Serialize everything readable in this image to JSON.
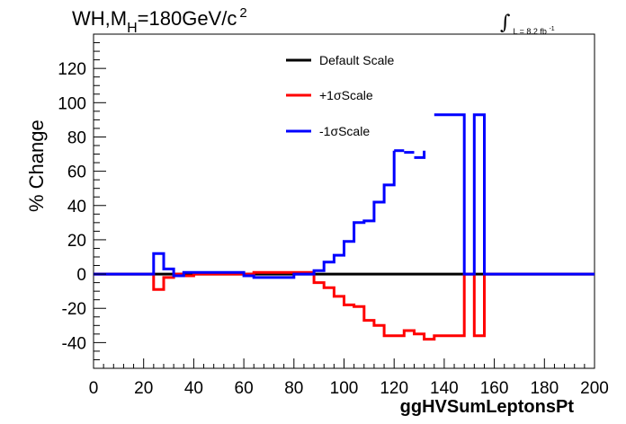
{
  "chart_data": {
    "type": "line",
    "title_parts": {
      "main": "WH,M",
      "sub": "H",
      "rest": "=180GeV/c",
      "sup": "2"
    },
    "lumi_label": "L = 8.2 fb",
    "lumi_sup": "-1",
    "xlabel": "ggHVSumLeptonsPt",
    "ylabel": "% Change",
    "xlim": [
      0,
      200
    ],
    "ylim": [
      -55,
      140
    ],
    "x_ticks": [
      0,
      20,
      40,
      60,
      80,
      100,
      120,
      140,
      160,
      180,
      200
    ],
    "x_tick_labels": [
      "0",
      "20",
      "40",
      "60",
      "80",
      "100",
      "120",
      "140",
      "160",
      "180",
      "200"
    ],
    "y_ticks": [
      -40,
      -20,
      0,
      20,
      40,
      60,
      80,
      100,
      120
    ],
    "y_tick_labels": [
      "-40",
      "-20",
      "0",
      "20",
      "40",
      "60",
      "80",
      "100",
      "120"
    ],
    "grid": false,
    "legend_position": "top-center",
    "series": [
      {
        "name": "Default Scale",
        "color": "#000000",
        "style": "step",
        "points": [
          [
            0,
            0
          ],
          [
            200,
            0
          ]
        ]
      },
      {
        "name": "+1σScale",
        "color": "#ff0000",
        "style": "step",
        "points": [
          [
            0,
            0
          ],
          [
            24,
            0
          ],
          [
            24,
            -9
          ],
          [
            28,
            -9
          ],
          [
            28,
            -2
          ],
          [
            32,
            -2
          ],
          [
            32,
            0
          ],
          [
            36,
            0
          ],
          [
            36,
            -1
          ],
          [
            40,
            -1
          ],
          [
            40,
            0
          ],
          [
            64,
            0
          ],
          [
            64,
            1
          ],
          [
            88,
            1
          ],
          [
            88,
            -5
          ],
          [
            92,
            -5
          ],
          [
            92,
            -8
          ],
          [
            96,
            -8
          ],
          [
            96,
            -13
          ],
          [
            100,
            -13
          ],
          [
            100,
            -18
          ],
          [
            104,
            -18
          ],
          [
            104,
            -19
          ],
          [
            108,
            -19
          ],
          [
            108,
            -27
          ],
          [
            112,
            -27
          ],
          [
            112,
            -30
          ],
          [
            116,
            -30
          ],
          [
            116,
            -36
          ],
          [
            120,
            -36
          ],
          [
            120,
            -36
          ],
          [
            124,
            -36
          ],
          [
            124,
            -33
          ],
          [
            128,
            -33
          ],
          [
            128,
            -35
          ],
          [
            132,
            -35
          ],
          [
            132,
            -38
          ],
          [
            136,
            -38
          ],
          [
            136,
            -36
          ],
          [
            140,
            -36
          ],
          [
            140,
            -36
          ],
          [
            148,
            -36
          ],
          [
            148,
            0
          ],
          [
            152,
            0
          ],
          [
            152,
            -36
          ],
          [
            156,
            -36
          ],
          [
            156,
            0
          ],
          [
            200,
            0
          ]
        ]
      },
      {
        "name": "-1σScale",
        "color": "#0000ff",
        "style": "step",
        "points": [
          [
            0,
            0
          ],
          [
            24,
            0
          ],
          [
            24,
            12
          ],
          [
            28,
            12
          ],
          [
            28,
            3
          ],
          [
            32,
            3
          ],
          [
            32,
            -1
          ],
          [
            36,
            -1
          ],
          [
            36,
            1
          ],
          [
            60,
            1
          ],
          [
            60,
            -1
          ],
          [
            64,
            -1
          ],
          [
            64,
            -2
          ],
          [
            80,
            -2
          ],
          [
            80,
            0
          ],
          [
            88,
            0
          ],
          [
            88,
            2
          ],
          [
            92,
            2
          ],
          [
            92,
            7
          ],
          [
            96,
            7
          ],
          [
            96,
            11
          ],
          [
            100,
            11
          ],
          [
            100,
            19
          ],
          [
            104,
            19
          ],
          [
            104,
            30
          ],
          [
            108,
            30
          ],
          [
            108,
            31
          ],
          [
            112,
            31
          ],
          [
            112,
            42
          ],
          [
            116,
            42
          ],
          [
            116,
            52
          ],
          [
            120,
            52
          ],
          [
            120,
            72
          ]
        ],
        "extra_segments": [
          [
            [
              120,
              72
            ],
            [
              124,
              72
            ]
          ],
          [
            [
              124,
              71
            ],
            [
              128,
              71
            ]
          ],
          [
            [
              128,
              68
            ],
            [
              132,
              68
            ],
            [
              132,
              72
            ]
          ],
          [
            [
              136,
              93
            ],
            [
              148,
              93
            ],
            [
              148,
              0
            ],
            [
              152,
              0
            ],
            [
              152,
              93
            ],
            [
              156,
              93
            ],
            [
              156,
              0
            ],
            [
              200,
              0
            ]
          ]
        ]
      }
    ]
  }
}
